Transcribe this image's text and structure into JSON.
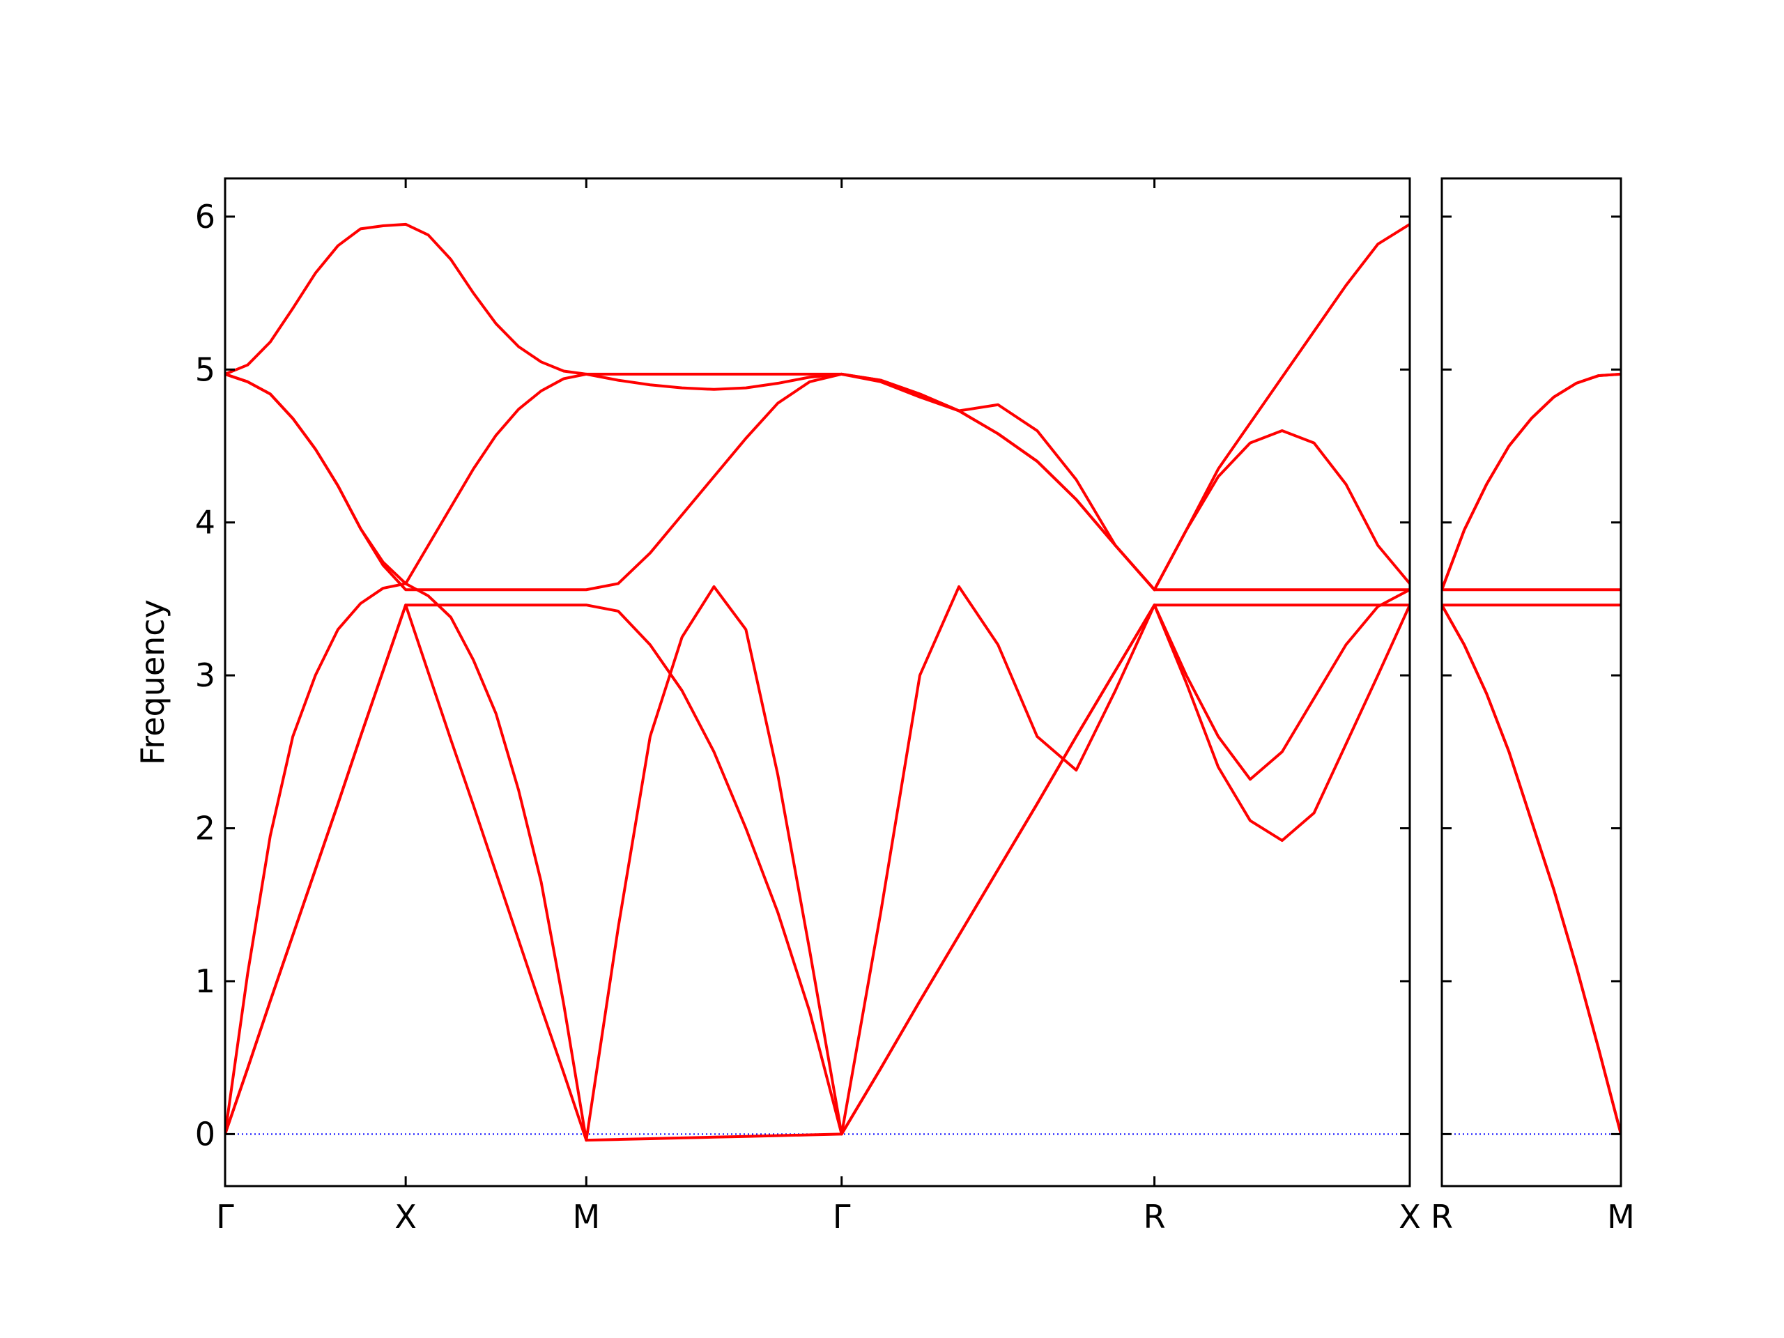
{
  "chart_data": [
    {
      "type": "line",
      "y_label": "Frequency",
      "xlim": [
        0,
        3.28
      ],
      "ylim": [
        -0.34,
        6.25
      ],
      "xticks": [
        {
          "value": 0,
          "label": "Γ"
        },
        {
          "value": 0.5,
          "label": "X"
        },
        {
          "value": 1,
          "label": "M"
        },
        {
          "value": 1.707,
          "label": "Γ"
        },
        {
          "value": 2.573,
          "label": "R"
        },
        {
          "value": 3.28,
          "label": "X"
        }
      ],
      "yticks": [
        0,
        1,
        2,
        3,
        4,
        5,
        6
      ],
      "zero_line_color": "#0000ff",
      "x": [
        0,
        0.0625,
        0.125,
        0.1875,
        0.25,
        0.3125,
        0.375,
        0.4375,
        0.5,
        0.5625,
        0.625,
        0.6875,
        0.75,
        0.8125,
        0.875,
        0.9375,
        1,
        1.0884,
        1.1768,
        1.2651,
        1.3535,
        1.4419,
        1.5303,
        1.6186,
        1.707,
        1.8153,
        1.9235,
        2.0318,
        2.14,
        2.2483,
        2.3565,
        2.4648,
        2.573,
        2.6614,
        2.7498,
        2.8381,
        2.9265,
        3.0149,
        3.1033,
        3.1916,
        3.28
      ],
      "series": [
        {
          "color": "#ff0000",
          "values": [
            0,
            0.43,
            0.87,
            1.3,
            1.73,
            2.16,
            2.6,
            3.03,
            3.46,
            3.02,
            2.58,
            2.15,
            1.71,
            1.27,
            0.83,
            0.4,
            -0.04,
            -0.035,
            -0.03,
            -0.025,
            -0.02,
            -0.015,
            -0.01,
            -0.005,
            0,
            0.43,
            0.87,
            1.3,
            1.73,
            2.16,
            2.6,
            3.03,
            3.46,
            3.46,
            3.46,
            3.46,
            3.46,
            3.46,
            3.46,
            3.46,
            3.46
          ]
        },
        {
          "color": "#ff0000",
          "values": [
            0,
            0.43,
            0.87,
            1.3,
            1.73,
            2.16,
            2.6,
            3.03,
            3.46,
            3.46,
            3.46,
            3.46,
            3.46,
            3.46,
            3.46,
            3.46,
            3.46,
            3.42,
            3.2,
            2.9,
            2.5,
            2.0,
            1.45,
            0.8,
            0,
            1.45,
            3.0,
            3.58,
            3.2,
            2.6,
            2.38,
            2.9,
            3.46,
            2.95,
            2.4,
            2.05,
            1.92,
            2.1,
            2.55,
            3.0,
            3.46
          ]
        },
        {
          "color": "#ff0000",
          "values": [
            4.97,
            4.92,
            4.84,
            4.68,
            4.48,
            4.24,
            3.96,
            3.72,
            3.56,
            3.56,
            3.56,
            3.56,
            3.56,
            3.56,
            3.56,
            3.56,
            3.56,
            3.6,
            3.8,
            4.05,
            4.3,
            4.55,
            4.78,
            4.92,
            4.97,
            4.92,
            4.82,
            4.73,
            4.77,
            4.6,
            4.28,
            3.85,
            3.56,
            3.56,
            3.56,
            3.56,
            3.56,
            3.56,
            3.56,
            3.56,
            3.56
          ]
        },
        {
          "color": "#ff0000",
          "values": [
            0,
            1.05,
            1.95,
            2.6,
            3.0,
            3.3,
            3.47,
            3.57,
            3.6,
            3.52,
            3.38,
            3.1,
            2.75,
            2.25,
            1.65,
            0.85,
            -0.04,
            1.35,
            2.6,
            3.25,
            3.58,
            3.3,
            2.35,
            1.2,
            0,
            0.43,
            0.87,
            1.3,
            1.73,
            2.16,
            2.6,
            3.03,
            3.46,
            3.0,
            2.6,
            2.32,
            2.5,
            2.85,
            3.2,
            3.45,
            3.56
          ]
        },
        {
          "color": "#ff0000",
          "values": [
            4.97,
            4.92,
            4.84,
            4.68,
            4.48,
            4.24,
            3.96,
            3.74,
            3.6,
            3.85,
            4.1,
            4.35,
            4.57,
            4.74,
            4.86,
            4.94,
            4.97,
            4.93,
            4.9,
            4.88,
            4.87,
            4.88,
            4.91,
            4.95,
            4.97,
            4.93,
            4.84,
            4.73,
            4.58,
            4.4,
            4.15,
            3.85,
            3.56,
            3.95,
            4.3,
            4.52,
            4.6,
            4.52,
            4.25,
            3.85,
            3.6
          ]
        },
        {
          "color": "#ff0000",
          "values": [
            4.97,
            5.03,
            5.18,
            5.4,
            5.63,
            5.81,
            5.92,
            5.94,
            5.95,
            5.88,
            5.72,
            5.5,
            5.3,
            5.15,
            5.05,
            4.99,
            4.97,
            4.97,
            4.97,
            4.97,
            4.97,
            4.97,
            4.97,
            4.97,
            4.97,
            4.93,
            4.84,
            4.73,
            4.58,
            4.4,
            4.15,
            3.85,
            3.56,
            3.95,
            4.35,
            4.65,
            4.95,
            5.25,
            5.55,
            5.82,
            5.95
          ]
        }
      ]
    },
    {
      "type": "line",
      "xlim": [
        0,
        0.5
      ],
      "ylim": [
        -0.34,
        6.25
      ],
      "xticks": [
        {
          "value": 0,
          "label": "R"
        },
        {
          "value": 0.5,
          "label": "M"
        }
      ],
      "yticks": [
        0,
        1,
        2,
        3,
        4,
        5,
        6
      ],
      "zero_line_color": "#0000ff",
      "x": [
        0,
        0.0625,
        0.125,
        0.1875,
        0.25,
        0.3125,
        0.375,
        0.4375,
        0.5
      ],
      "series": [
        {
          "color": "#ff0000",
          "values": [
            3.46,
            3.2,
            2.88,
            2.5,
            2.05,
            1.6,
            1.1,
            0.56,
            0
          ]
        },
        {
          "color": "#ff0000",
          "values": [
            3.46,
            3.2,
            2.88,
            2.5,
            2.05,
            1.6,
            1.1,
            0.56,
            0
          ]
        },
        {
          "color": "#ff0000",
          "values": [
            3.46,
            3.46,
            3.46,
            3.46,
            3.46,
            3.46,
            3.46,
            3.46,
            3.46
          ]
        },
        {
          "color": "#ff0000",
          "values": [
            3.56,
            3.56,
            3.56,
            3.56,
            3.56,
            3.56,
            3.56,
            3.56,
            3.56
          ]
        },
        {
          "color": "#ff0000",
          "values": [
            3.56,
            3.95,
            4.25,
            4.5,
            4.68,
            4.82,
            4.91,
            4.96,
            4.97
          ]
        },
        {
          "color": "#ff0000",
          "values": [
            3.56,
            3.95,
            4.25,
            4.5,
            4.68,
            4.82,
            4.91,
            4.96,
            4.97
          ]
        }
      ]
    }
  ]
}
